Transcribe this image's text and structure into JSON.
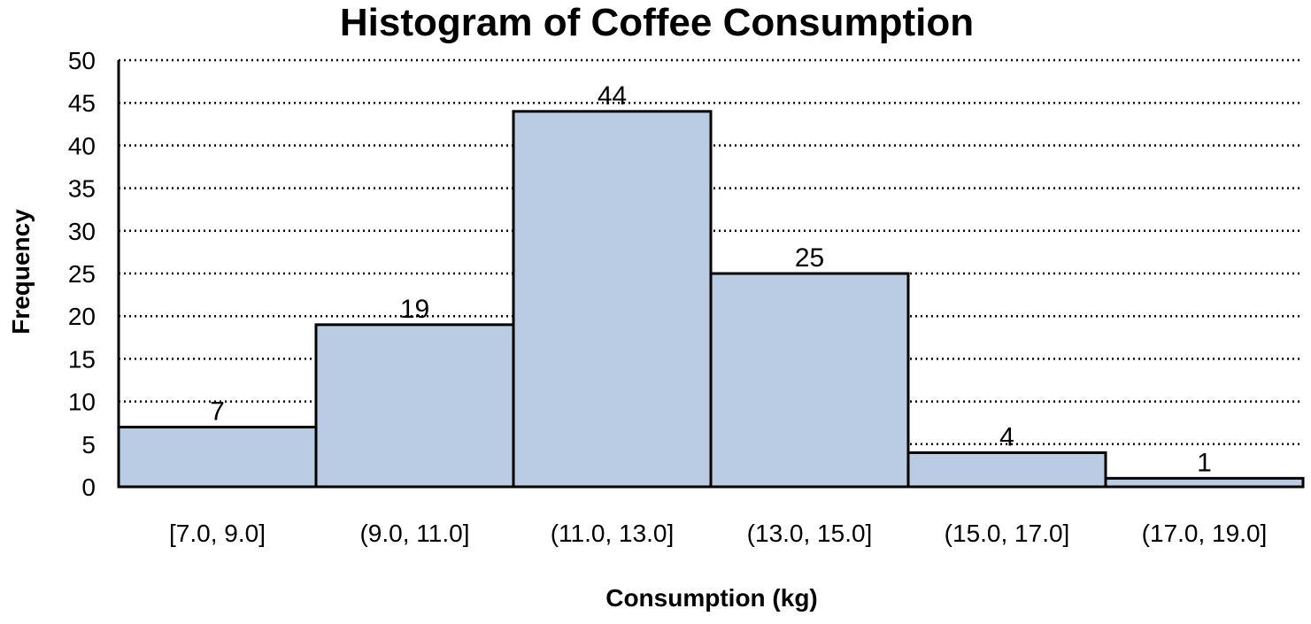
{
  "chart_data": {
    "type": "bar",
    "title": "Histogram of Coffee Consumption",
    "xlabel": "Consumption (kg)",
    "ylabel": "Frequency",
    "categories": [
      "[7.0, 9.0]",
      "(9.0, 11.0]",
      "(11.0, 13.0]",
      "(13.0, 15.0]",
      "(15.0, 17.0]",
      "(17.0, 19.0]"
    ],
    "values": [
      7,
      19,
      44,
      25,
      4,
      1
    ],
    "data_labels": [
      "7",
      "19",
      "44",
      "25",
      "4",
      "1"
    ],
    "yticks": [
      "0",
      "5",
      "10",
      "15",
      "20",
      "25",
      "30",
      "35",
      "40",
      "45",
      "50"
    ],
    "ylim": [
      0,
      50
    ],
    "grid": true,
    "legend": "none",
    "colors": {
      "bar_fill": "#b9cce4",
      "bar_stroke": "#000000",
      "grid": "#000000"
    }
  }
}
